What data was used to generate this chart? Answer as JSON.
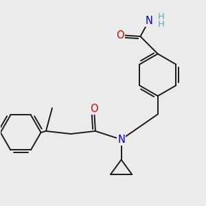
{
  "background_color": "#ebebeb",
  "bond_color": "#1a1a1a",
  "bond_width": 1.4,
  "atom_colors": {
    "O": "#e00000",
    "N": "#0000cc",
    "H": "#5aacac",
    "C": "#1a1a1a"
  },
  "font_size_atom": 10.5,
  "font_size_H": 9.5,
  "figsize": [
    3.0,
    3.0
  ],
  "dpi": 100
}
